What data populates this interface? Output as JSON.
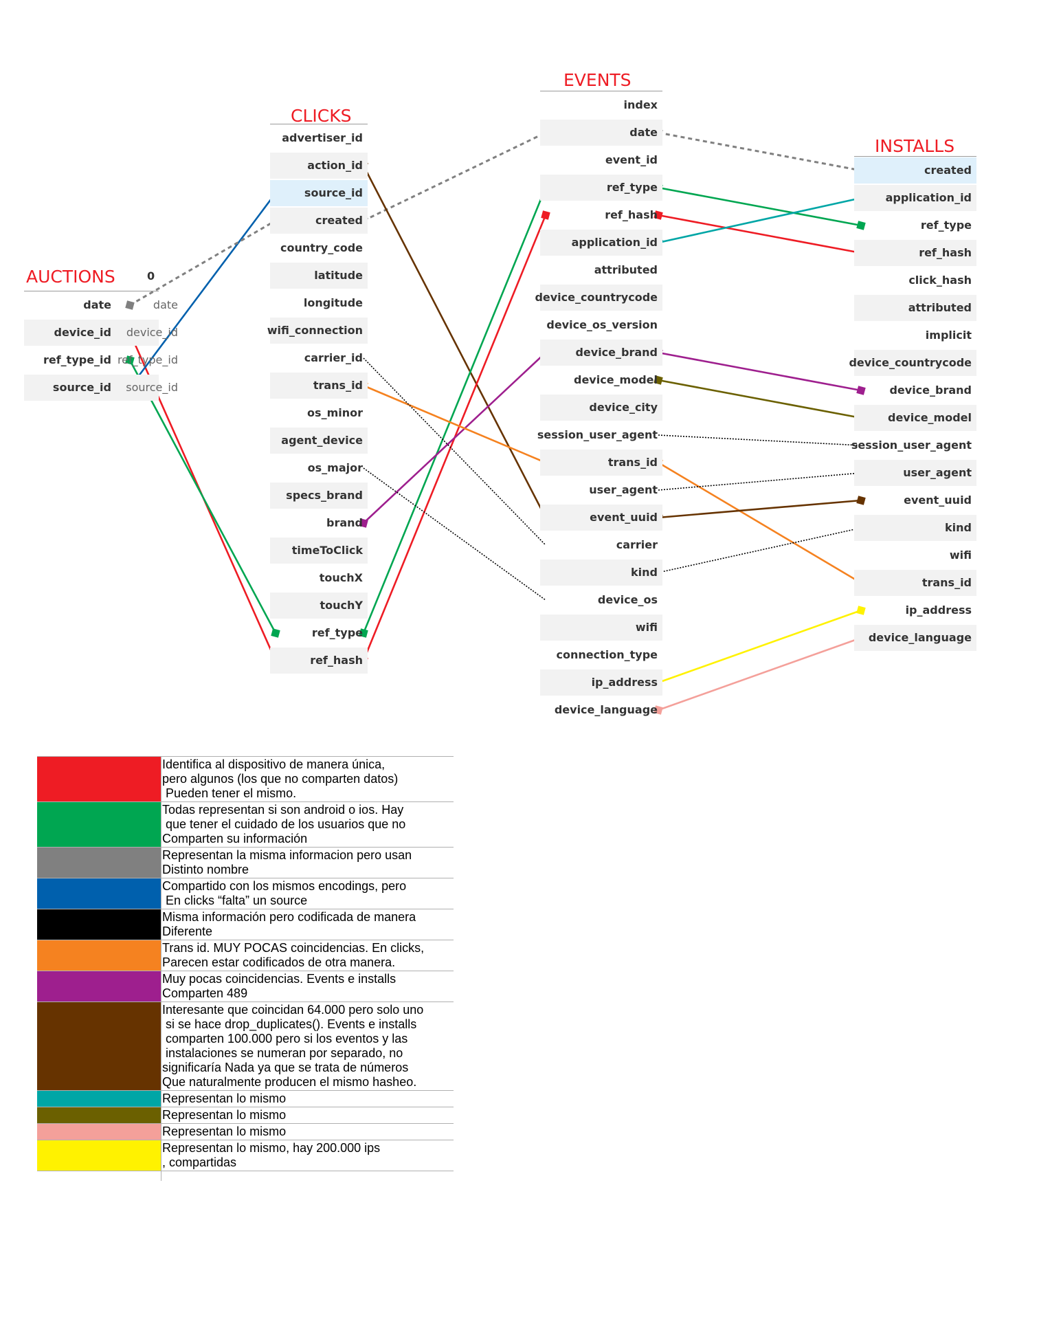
{
  "tables": [
    {
      "key": "auctions",
      "title": "AUCTIONS",
      "index_header": "0",
      "rows": [
        {
          "field": "date",
          "value": "date"
        },
        {
          "field": "device_id",
          "value": "device_id"
        },
        {
          "field": "ref_type_id",
          "value": "ref_type_id"
        },
        {
          "field": "source_id",
          "value": "source_id"
        }
      ]
    },
    {
      "key": "clicks",
      "title": "CLICKS",
      "rows": [
        {
          "field": "advertiser_id"
        },
        {
          "field": "action_id"
        },
        {
          "field": "source_id"
        },
        {
          "field": "created"
        },
        {
          "field": "country_code"
        },
        {
          "field": "latitude"
        },
        {
          "field": "longitude"
        },
        {
          "field": "wifi_connection"
        },
        {
          "field": "carrier_id"
        },
        {
          "field": "trans_id"
        },
        {
          "field": "os_minor"
        },
        {
          "field": "agent_device"
        },
        {
          "field": "os_major"
        },
        {
          "field": "specs_brand"
        },
        {
          "field": "brand"
        },
        {
          "field": "timeToClick"
        },
        {
          "field": "touchX"
        },
        {
          "field": "touchY"
        },
        {
          "field": "ref_type"
        },
        {
          "field": "ref_hash"
        }
      ]
    },
    {
      "key": "events",
      "title": "EVENTS",
      "rows": [
        {
          "field": "index"
        },
        {
          "field": "date"
        },
        {
          "field": "event_id"
        },
        {
          "field": "ref_type"
        },
        {
          "field": "ref_hash"
        },
        {
          "field": "application_id"
        },
        {
          "field": "attributed"
        },
        {
          "field": "device_countrycode"
        },
        {
          "field": "device_os_version"
        },
        {
          "field": "device_brand"
        },
        {
          "field": "device_model"
        },
        {
          "field": "device_city"
        },
        {
          "field": "session_user_agent"
        },
        {
          "field": "trans_id"
        },
        {
          "field": "user_agent"
        },
        {
          "field": "event_uuid"
        },
        {
          "field": "carrier"
        },
        {
          "field": "kind"
        },
        {
          "field": "device_os"
        },
        {
          "field": "wifi"
        },
        {
          "field": "connection_type"
        },
        {
          "field": "ip_address"
        },
        {
          "field": "device_language"
        }
      ]
    },
    {
      "key": "installs",
      "title": "INSTALLS",
      "rows": [
        {
          "field": "created"
        },
        {
          "field": "application_id"
        },
        {
          "field": "ref_type"
        },
        {
          "field": "ref_hash"
        },
        {
          "field": "click_hash"
        },
        {
          "field": "attributed"
        },
        {
          "field": "implicit"
        },
        {
          "field": "device_countrycode"
        },
        {
          "field": "device_brand"
        },
        {
          "field": "device_model"
        },
        {
          "field": "session_user_agent"
        },
        {
          "field": "user_agent"
        },
        {
          "field": "event_uuid"
        },
        {
          "field": "kind"
        },
        {
          "field": "wifi"
        },
        {
          "field": "trans_id"
        },
        {
          "field": "ip_address"
        },
        {
          "field": "device_language"
        }
      ]
    }
  ],
  "connections": [
    {
      "color": "#ee1c24",
      "style": "solid",
      "from": [
        "auctions",
        "device_id"
      ],
      "to": [
        "clicks",
        "ref_hash"
      ]
    },
    {
      "color": "#00a651",
      "style": "solid",
      "from": [
        "auctions",
        "ref_type_id"
      ],
      "to": [
        "clicks",
        "ref_type"
      ]
    },
    {
      "color": "#0060ad",
      "style": "solid",
      "from": [
        "auctions",
        "source_id"
      ],
      "to": [
        "clicks",
        "source_id"
      ]
    },
    {
      "color": "#808080",
      "style": "dashed",
      "from": [
        "auctions",
        "date"
      ],
      "to": [
        "clicks",
        "created"
      ]
    },
    {
      "color": "#808080",
      "style": "dashed",
      "from": [
        "clicks",
        "created"
      ],
      "to": [
        "events",
        "date"
      ]
    },
    {
      "color": "#808080",
      "style": "dashed",
      "from": [
        "events",
        "date"
      ],
      "to": [
        "installs",
        "created"
      ]
    },
    {
      "color": "#663300",
      "style": "solid",
      "from": [
        "clicks",
        "action_id"
      ],
      "to": [
        "events",
        "event_uuid"
      ]
    },
    {
      "color": "#00a651",
      "style": "solid",
      "from": [
        "clicks",
        "ref_type"
      ],
      "to": [
        "events",
        "ref_type"
      ]
    },
    {
      "color": "#ee1c24",
      "style": "solid",
      "from": [
        "clicks",
        "ref_hash"
      ],
      "to": [
        "events",
        "ref_hash"
      ]
    },
    {
      "color": "#9e1f8e",
      "style": "solid",
      "from": [
        "clicks",
        "brand"
      ],
      "to": [
        "events",
        "device_brand"
      ]
    },
    {
      "color": "#f58220",
      "style": "solid",
      "from": [
        "clicks",
        "trans_id"
      ],
      "to": [
        "events",
        "trans_id"
      ]
    },
    {
      "color": "#000000",
      "style": "dotted",
      "from": [
        "clicks",
        "carrier_id"
      ],
      "to": [
        "events",
        "carrier"
      ]
    },
    {
      "color": "#000000",
      "style": "dotted",
      "from": [
        "clicks",
        "os_major"
      ],
      "to": [
        "events",
        "device_os"
      ]
    },
    {
      "color": "#00a651",
      "style": "solid",
      "from": [
        "events",
        "ref_type"
      ],
      "to": [
        "installs",
        "ref_type"
      ]
    },
    {
      "color": "#ee1c24",
      "style": "solid",
      "from": [
        "events",
        "ref_hash"
      ],
      "to": [
        "installs",
        "ref_hash"
      ]
    },
    {
      "color": "#00a6a6",
      "style": "solid",
      "from": [
        "events",
        "application_id"
      ],
      "to": [
        "installs",
        "application_id"
      ]
    },
    {
      "color": "#9e1f8e",
      "style": "solid",
      "from": [
        "events",
        "device_brand"
      ],
      "to": [
        "installs",
        "device_brand"
      ]
    },
    {
      "color": "#6b6000",
      "style": "solid",
      "from": [
        "events",
        "device_model"
      ],
      "to": [
        "installs",
        "device_model"
      ]
    },
    {
      "color": "#000000",
      "style": "dotted",
      "from": [
        "events",
        "session_user_agent"
      ],
      "to": [
        "installs",
        "session_user_agent"
      ]
    },
    {
      "color": "#f58220",
      "style": "solid",
      "from": [
        "events",
        "trans_id"
      ],
      "to": [
        "installs",
        "trans_id"
      ]
    },
    {
      "color": "#000000",
      "style": "dotted",
      "from": [
        "events",
        "user_agent"
      ],
      "to": [
        "installs",
        "user_agent"
      ]
    },
    {
      "color": "#663300",
      "style": "solid",
      "from": [
        "events",
        "event_uuid"
      ],
      "to": [
        "installs",
        "event_uuid"
      ]
    },
    {
      "color": "#000000",
      "style": "dotted",
      "from": [
        "events",
        "kind"
      ],
      "to": [
        "installs",
        "kind"
      ]
    },
    {
      "color": "#fff200",
      "style": "solid",
      "from": [
        "events",
        "ip_address"
      ],
      "to": [
        "installs",
        "ip_address"
      ]
    },
    {
      "color": "#f4a09a",
      "style": "solid",
      "from": [
        "events",
        "device_language"
      ],
      "to": [
        "installs",
        "device_language"
      ]
    }
  ],
  "legend": [
    {
      "color": "#ee1c24",
      "text": "Identifica al dispositivo de manera única,\npero algunos (los que no comparten datos)\n Pueden tener el mismo."
    },
    {
      "color": "#00a651",
      "text": "Todas representan si son android o ios. Hay\n que tener el cuidado de los usuarios que no\nComparten su información"
    },
    {
      "color": "#808080",
      "text": "Representan la misma informacion pero usan\nDistinto nombre"
    },
    {
      "color": "#0060ad",
      "text": "Compartido con los mismos encodings, pero\n En clicks “falta” un source"
    },
    {
      "color": "#000000",
      "text": "Misma información pero codificada de manera\nDiferente"
    },
    {
      "color": "#f58220",
      "text": "Trans id. MUY POCAS coincidencias. En clicks,\nParecen estar codificados de otra manera."
    },
    {
      "color": "#9e1f8e",
      "text": "Muy pocas coincidencias. Events e installs\nComparten 489"
    },
    {
      "color": "#663300",
      "text": "Interesante que coincidan 64.000 pero solo uno\n si se hace drop_duplicates(). Events e installs\n comparten 100.000 pero si los eventos y las\n instalaciones se numeran por separado, no\nsignificaría Nada ya que se trata de números\nQue naturalmente producen el mismo hasheo."
    },
    {
      "color": "#00a6a6",
      "text": "Representan lo mismo"
    },
    {
      "color": "#6b6000",
      "text": "Representan lo mismo"
    },
    {
      "color": "#f4a09a",
      "text": "Representan lo mismo"
    },
    {
      "color": "#fff200",
      "text": "Representan lo mismo, hay 200.000 ips\n, compartidas"
    }
  ]
}
